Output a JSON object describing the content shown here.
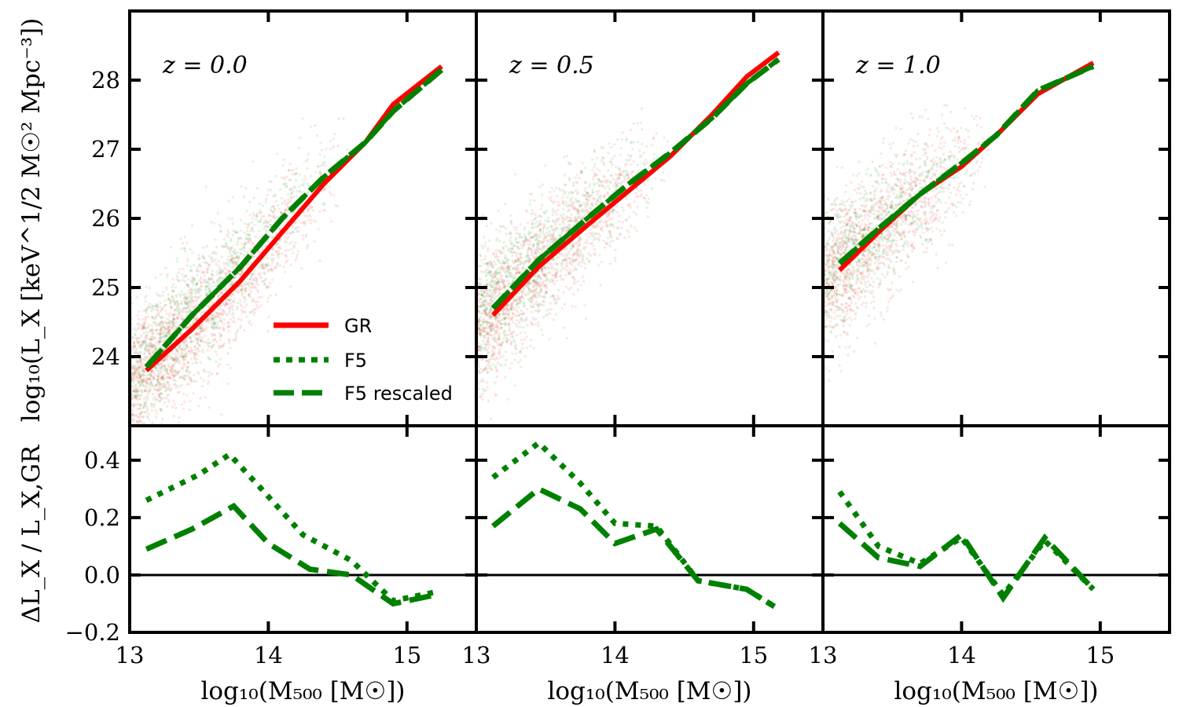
{
  "chart_data": {
    "type": "line",
    "colors": {
      "GR": "#ff0000",
      "F5": "#008000",
      "scatter_GR": "#ff0000",
      "scatter_F5": "#008000",
      "axes": "#000000"
    },
    "legend": {
      "placement": "lower-right of left top panel",
      "entries": [
        {
          "label": "GR",
          "style": "solid",
          "color": "#ff0000"
        },
        {
          "label": "F5",
          "style": "dotted",
          "color": "#008000"
        },
        {
          "label": "F5 rescaled",
          "style": "dashed",
          "color": "#008000"
        }
      ]
    },
    "shared": {
      "xlim": [
        13,
        15.5
      ],
      "xticks": [
        13,
        14,
        15
      ],
      "xlabel": "log₁₀(M₅₀₀ [M☉])",
      "top_ylim": [
        23,
        29
      ],
      "top_yticks": [
        24,
        25,
        26,
        27,
        28
      ],
      "top_ylabel": "log₁₀(L_X [keV^1/2 M☉² Mpc⁻³])",
      "bottom_ylim": [
        -0.2,
        0.52
      ],
      "bottom_yticks": [
        -0.2,
        0.0,
        0.2,
        0.4
      ],
      "bottom_ylabel": "ΔL_X / L_X,GR"
    },
    "panels": [
      {
        "redshift_label": "z = 0.0",
        "top": {
          "GR": {
            "x": [
              13.12,
              13.45,
              13.8,
              14.1,
              14.4,
              14.7,
              14.9,
              15.25
            ],
            "y": [
              23.8,
              24.4,
              25.1,
              25.8,
              26.5,
              27.1,
              27.65,
              28.2
            ]
          },
          "F5_rescaled": {
            "x": [
              13.12,
              13.45,
              13.8,
              14.1,
              14.4,
              14.7,
              14.9,
              15.25
            ],
            "y": [
              23.85,
              24.6,
              25.3,
              26.0,
              26.6,
              27.1,
              27.55,
              28.15
            ]
          },
          "scatter": {
            "x_range": [
              13.0,
              14.6
            ],
            "count_per_model": 1400
          }
        },
        "bottom": {
          "F5": {
            "x": [
              13.12,
              13.5,
              13.72,
              13.95,
              14.25,
              14.6,
              14.9,
              15.2
            ],
            "y": [
              0.26,
              0.35,
              0.42,
              0.3,
              0.14,
              0.05,
              -0.09,
              -0.06
            ]
          },
          "F5_rescaled": {
            "x": [
              13.12,
              13.45,
              13.75,
              14.0,
              14.3,
              14.6,
              14.9,
              15.2
            ],
            "y": [
              0.09,
              0.16,
              0.24,
              0.11,
              0.02,
              0.0,
              -0.1,
              -0.07
            ]
          }
        }
      },
      {
        "redshift_label": "z = 0.5",
        "top": {
          "GR": {
            "x": [
              13.12,
              13.45,
              13.8,
              14.1,
              14.4,
              14.7,
              14.95,
              15.18
            ],
            "y": [
              24.6,
              25.3,
              25.9,
              26.4,
              26.9,
              27.5,
              28.05,
              28.4
            ]
          },
          "F5_rescaled": {
            "x": [
              13.12,
              13.45,
              13.8,
              14.1,
              14.4,
              14.7,
              14.95,
              15.18
            ],
            "y": [
              24.7,
              25.4,
              26.0,
              26.5,
              26.95,
              27.45,
              27.95,
              28.3
            ]
          },
          "scatter": {
            "x_range": [
              13.0,
              14.4
            ],
            "count_per_model": 1200
          }
        },
        "bottom": {
          "F5": {
            "x": [
              13.12,
              13.45,
              13.75,
              14.0,
              14.3,
              14.6,
              14.95,
              15.15
            ],
            "y": [
              0.34,
              0.46,
              0.32,
              0.18,
              0.17,
              -0.02,
              -0.05,
              -0.11
            ]
          },
          "F5_rescaled": {
            "x": [
              13.12,
              13.45,
              13.75,
              14.0,
              14.3,
              14.6,
              14.95,
              15.15
            ],
            "y": [
              0.17,
              0.3,
              0.23,
              0.11,
              0.16,
              -0.02,
              -0.05,
              -0.11
            ]
          }
        }
      },
      {
        "redshift_label": "z = 1.0",
        "top": {
          "GR": {
            "x": [
              13.12,
              13.4,
              13.7,
              14.0,
              14.25,
              14.55,
              14.95
            ],
            "y": [
              25.25,
              25.8,
              26.35,
              26.75,
              27.2,
              27.8,
              28.25
            ]
          },
          "F5_rescaled": {
            "x": [
              13.12,
              13.4,
              13.7,
              14.0,
              14.25,
              14.55,
              14.95
            ],
            "y": [
              25.35,
              25.85,
              26.35,
              26.8,
              27.2,
              27.85,
              28.2
            ]
          },
          "scatter": {
            "x_range": [
              13.0,
              14.2
            ],
            "count_per_model": 1000
          }
        },
        "bottom": {
          "F5": {
            "x": [
              13.12,
              13.4,
              13.7,
              14.0,
              14.3,
              14.6,
              14.95
            ],
            "y": [
              0.29,
              0.1,
              0.04,
              0.13,
              -0.07,
              0.12,
              -0.05
            ]
          },
          "F5_rescaled": {
            "x": [
              13.12,
              13.4,
              13.7,
              14.0,
              14.3,
              14.6,
              14.95
            ],
            "y": [
              0.18,
              0.06,
              0.03,
              0.14,
              -0.08,
              0.13,
              -0.05
            ]
          }
        }
      }
    ]
  }
}
